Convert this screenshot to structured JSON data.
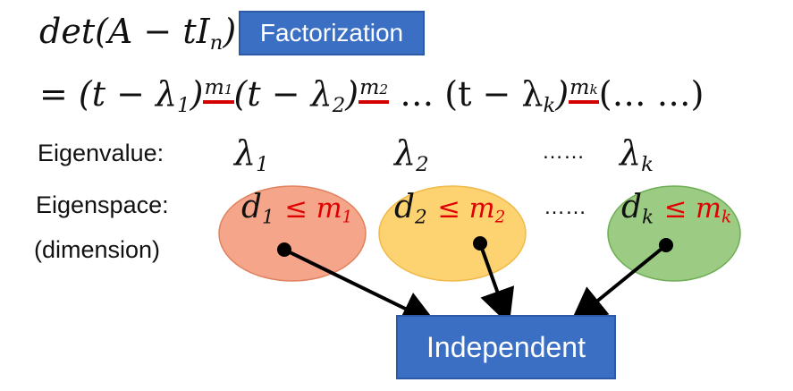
{
  "formula": {
    "lhs": "det(A − tI",
    "lhs_sub": "n",
    "lhs_close": ")",
    "eq": "= (t − λ",
    "f1_sub": "1",
    "f1_close": ")",
    "m1": "m",
    "m1_sub": "1",
    "f2_open": "(t − λ",
    "f2_sub": "2",
    "f2_close": ")",
    "m2": "m",
    "m2_sub": "2",
    "dots": " … (t − λ",
    "fk_sub": "k",
    "fk_close": ")",
    "mk": "m",
    "mk_sub": "k",
    "rest": "(… …)"
  },
  "factorization_label": "Factorization",
  "rows": {
    "eigenvalue_label": "Eigenvalue:",
    "eigenspace_label": "Eigenspace:",
    "dimension_label": "(dimension)"
  },
  "eigenvalues": [
    {
      "sym": "λ",
      "sub": "1"
    },
    {
      "sym": "λ",
      "sub": "2"
    },
    {
      "sym": "λ",
      "sub": "k"
    }
  ],
  "ellipsis": "……",
  "eigenspaces": [
    {
      "d": "d",
      "d_sub": "1",
      "le": "≤ m",
      "m_sub": "1",
      "fill": "#f4a58a",
      "stroke": "#e0825e"
    },
    {
      "d": "d",
      "d_sub": "2",
      "le": "≤ m",
      "m_sub": "2",
      "fill": "#fdd372",
      "stroke": "#f0b94a"
    },
    {
      "d": "d",
      "d_sub": "k",
      "le": "≤ m",
      "m_sub": "k",
      "fill": "#9ccc84",
      "stroke": "#6fae55"
    }
  ],
  "independent_label": "Independent"
}
